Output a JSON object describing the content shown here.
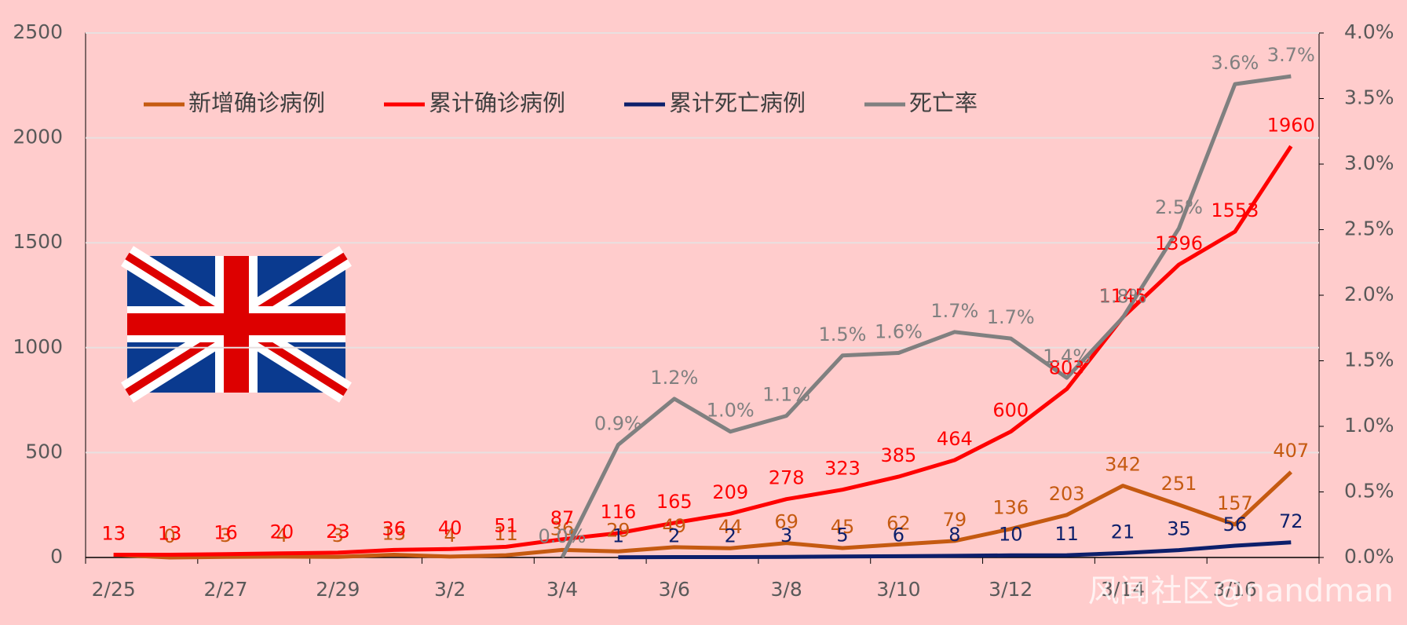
{
  "chart_data": {
    "type": "line",
    "categories": [
      "2/25",
      null,
      "2/27",
      null,
      "2/29",
      null,
      "3/2",
      null,
      "3/4",
      null,
      "3/6",
      null,
      "3/8",
      null,
      "3/10",
      null,
      "3/12",
      null,
      "3/14",
      null,
      "3/16",
      null
    ],
    "series": [
      {
        "name": "新增确诊病例",
        "color": "#c55a11",
        "values": [
          13,
          0,
          3,
          4,
          3,
          13,
          4,
          11,
          36,
          29,
          49,
          44,
          69,
          45,
          62,
          79,
          136,
          203,
          342,
          251,
          157,
          407
        ]
      },
      {
        "name": "累计确诊病例",
        "color": "#ff0000",
        "values": [
          13,
          13,
          16,
          20,
          23,
          36,
          40,
          51,
          87,
          116,
          165,
          209,
          278,
          323,
          385,
          464,
          600,
          803,
          1145,
          1396,
          1553,
          1960
        ]
      },
      {
        "name": "累计死亡病例",
        "color": "#0c1f6b",
        "values": [
          null,
          null,
          null,
          null,
          null,
          null,
          null,
          null,
          null,
          1,
          2,
          2,
          3,
          5,
          6,
          8,
          10,
          11,
          21,
          35,
          56,
          72
        ]
      },
      {
        "name": "死亡率",
        "color": "#808080",
        "axis": "y2",
        "values": [
          null,
          null,
          null,
          null,
          null,
          null,
          null,
          null,
          0,
          0.86,
          1.21,
          0.96,
          1.08,
          1.54,
          1.56,
          1.72,
          1.67,
          1.37,
          1.83,
          2.51,
          3.61,
          3.67
        ],
        "value_labels": [
          null,
          null,
          null,
          null,
          null,
          null,
          null,
          null,
          "0.0%",
          "0.9%",
          "1.2%",
          "1.0%",
          "1.1%",
          "1.5%",
          "1.6%",
          "1.7%",
          "1.7%",
          "1.4%",
          "1.8%",
          "2.5%",
          "3.6%",
          "3.7%"
        ]
      }
    ],
    "ylim": [
      0,
      2500
    ],
    "yticks": [
      0,
      500,
      1000,
      1500,
      2000,
      2500
    ],
    "y2lim": [
      0,
      4
    ],
    "y2ticks": [
      {
        "value": 0,
        "label": "0.0%"
      },
      {
        "value": 0.5,
        "label": "0.5%"
      },
      {
        "value": 1,
        "label": "1.0%"
      },
      {
        "value": 1.5,
        "label": "1.5%"
      },
      {
        "value": 2,
        "label": "2.0%"
      },
      {
        "value": 2.5,
        "label": "2.5%"
      },
      {
        "value": 3,
        "label": "3.0%"
      },
      {
        "value": 3.5,
        "label": "3.5%"
      },
      {
        "value": 4,
        "label": "4.0%"
      }
    ],
    "grid": true,
    "legend": "top",
    "watermark": "风闻社区@nandman"
  }
}
